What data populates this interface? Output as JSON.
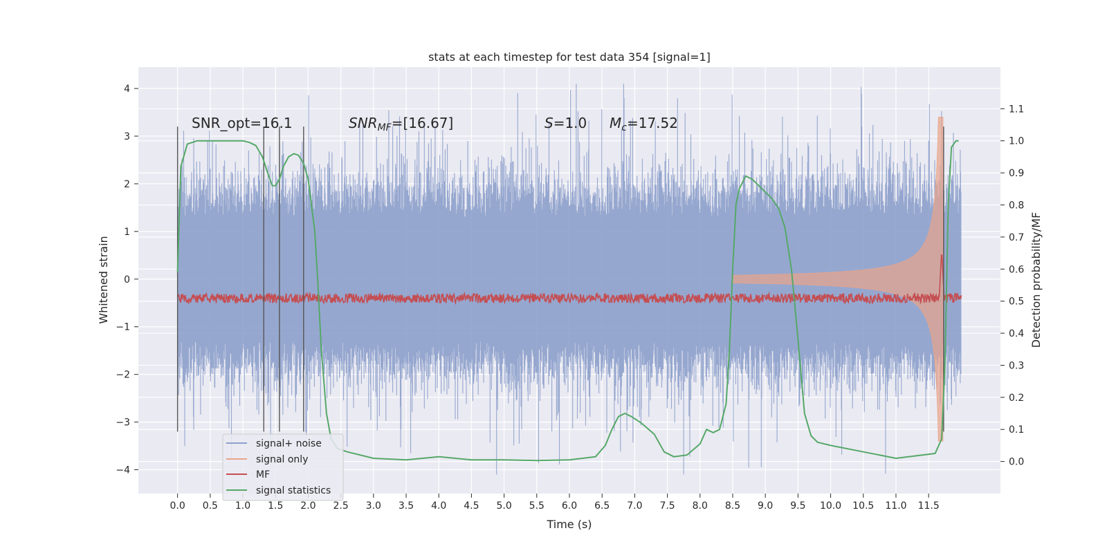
{
  "chart_data": {
    "type": "line",
    "title": "stats at each timestep for test data 354 [signal=1]",
    "xlabel": "Time (s)",
    "ylabel": "Whitened strain",
    "y2label": "Detection probability/MF",
    "xlim": [
      -0.6,
      12.6
    ],
    "ylim": [
      -4.5,
      4.45
    ],
    "y2lim": [
      -0.1,
      1.23
    ],
    "x_ticks": [
      0.0,
      0.5,
      1.0,
      1.5,
      2.0,
      2.5,
      3.0,
      3.5,
      4.0,
      4.5,
      5.0,
      5.5,
      6.0,
      6.5,
      7.0,
      7.5,
      8.0,
      8.5,
      9.0,
      9.5,
      10.0,
      10.5,
      11.0,
      11.5
    ],
    "x_tick_labels": [
      "0.0",
      "0.5",
      "1.0",
      "1.5",
      "2.0",
      "2.5",
      "3.0",
      "3.5",
      "4.0",
      "4.5",
      "5.0",
      "5.5",
      "6.0",
      "6.5",
      "7.0",
      "7.5",
      "8.0",
      "8.5",
      "9.0",
      "9.5",
      "10.0",
      "10.5",
      "11.0",
      "11.5"
    ],
    "y_ticks": [
      -4,
      -3,
      -2,
      -1,
      0,
      1,
      2,
      3,
      4
    ],
    "y_tick_labels": [
      "−4",
      "−3",
      "−2",
      "−1",
      "0",
      "1",
      "2",
      "3",
      "4"
    ],
    "y2_ticks": [
      0.0,
      0.1,
      0.2,
      0.3,
      0.4,
      0.5,
      0.6,
      0.7,
      0.8,
      0.9,
      1.0,
      1.1
    ],
    "y2_tick_labels": [
      "0.0",
      "0.1",
      "0.2",
      "0.3",
      "0.4",
      "0.5",
      "0.6",
      "0.7",
      "0.8",
      "0.9",
      "1.0",
      "1.1"
    ],
    "grid": true,
    "legend": {
      "placement": "lower-left",
      "entries": [
        {
          "label": "signal+ noise",
          "color": "#8da0cb"
        },
        {
          "label": "signal only",
          "color": "#e8a48a"
        },
        {
          "label": "MF",
          "color": "#c44e52"
        },
        {
          "label": "signal statistics",
          "color": "#55a868"
        }
      ]
    },
    "annotations": {
      "snr_opt": "SNR_opt=16.1",
      "snr_mf_label": "SNR",
      "snr_mf_sub": "MF",
      "snr_mf_value": "=[16.67]",
      "s_label": "S",
      "s_value": "=1.0",
      "mc_label": "M",
      "mc_sub": "c",
      "mc_value": "=17.52"
    },
    "vertical_markers_x": [
      0.0,
      1.32,
      1.56,
      1.93,
      11.73
    ],
    "vertical_marker_range": [
      -3.2,
      3.2
    ],
    "noise": {
      "name": "signal+ noise",
      "x_range": [
        0.0,
        12.0
      ],
      "typical_amplitude": 1.3,
      "peak_amplitude": 4.1,
      "min_value": -4.1
    },
    "signal_only": {
      "name": "signal only",
      "x_range": [
        8.5,
        11.72
      ],
      "envelope_max": 3.4,
      "merger_time": 11.7
    },
    "mf": {
      "name": "MF",
      "baseline": 0.5,
      "noise_band": 0.03,
      "peak_x": 11.7,
      "peak_value": 0.66
    },
    "series": [
      {
        "name": "signal statistics",
        "x": [
          0.0,
          0.05,
          0.15,
          0.3,
          0.5,
          1.0,
          1.1,
          1.2,
          1.3,
          1.38,
          1.45,
          1.5,
          1.56,
          1.62,
          1.7,
          1.78,
          1.85,
          1.93,
          2.0,
          2.05,
          2.1,
          2.15,
          2.2,
          2.28,
          2.35,
          2.45,
          2.6,
          3.0,
          3.5,
          4.0,
          4.5,
          5.0,
          5.5,
          6.0,
          6.4,
          6.55,
          6.65,
          6.75,
          6.85,
          6.95,
          7.1,
          7.3,
          7.45,
          7.6,
          7.8,
          8.0,
          8.1,
          8.2,
          8.3,
          8.4,
          8.45,
          8.5,
          8.55,
          8.6,
          8.7,
          8.8,
          8.9,
          9.0,
          9.1,
          9.2,
          9.3,
          9.4,
          9.5,
          9.6,
          9.7,
          9.8,
          10.0,
          10.5,
          11.0,
          11.6,
          11.7,
          11.75,
          11.8,
          11.85,
          11.92,
          11.96
        ],
        "values": [
          0.59,
          0.92,
          0.99,
          1.0,
          1.0,
          1.0,
          0.995,
          0.985,
          0.95,
          0.9,
          0.86,
          0.86,
          0.88,
          0.92,
          0.95,
          0.96,
          0.955,
          0.93,
          0.88,
          0.8,
          0.72,
          0.55,
          0.35,
          0.15,
          0.07,
          0.04,
          0.03,
          0.01,
          0.005,
          0.015,
          0.005,
          0.005,
          0.003,
          0.005,
          0.015,
          0.05,
          0.1,
          0.14,
          0.15,
          0.14,
          0.12,
          0.085,
          0.03,
          0.015,
          0.02,
          0.055,
          0.1,
          0.09,
          0.1,
          0.18,
          0.35,
          0.6,
          0.8,
          0.85,
          0.89,
          0.88,
          0.86,
          0.84,
          0.82,
          0.79,
          0.73,
          0.6,
          0.38,
          0.15,
          0.08,
          0.06,
          0.05,
          0.03,
          0.01,
          0.025,
          0.07,
          0.3,
          0.8,
          0.98,
          1.0,
          1.0
        ]
      }
    ]
  }
}
